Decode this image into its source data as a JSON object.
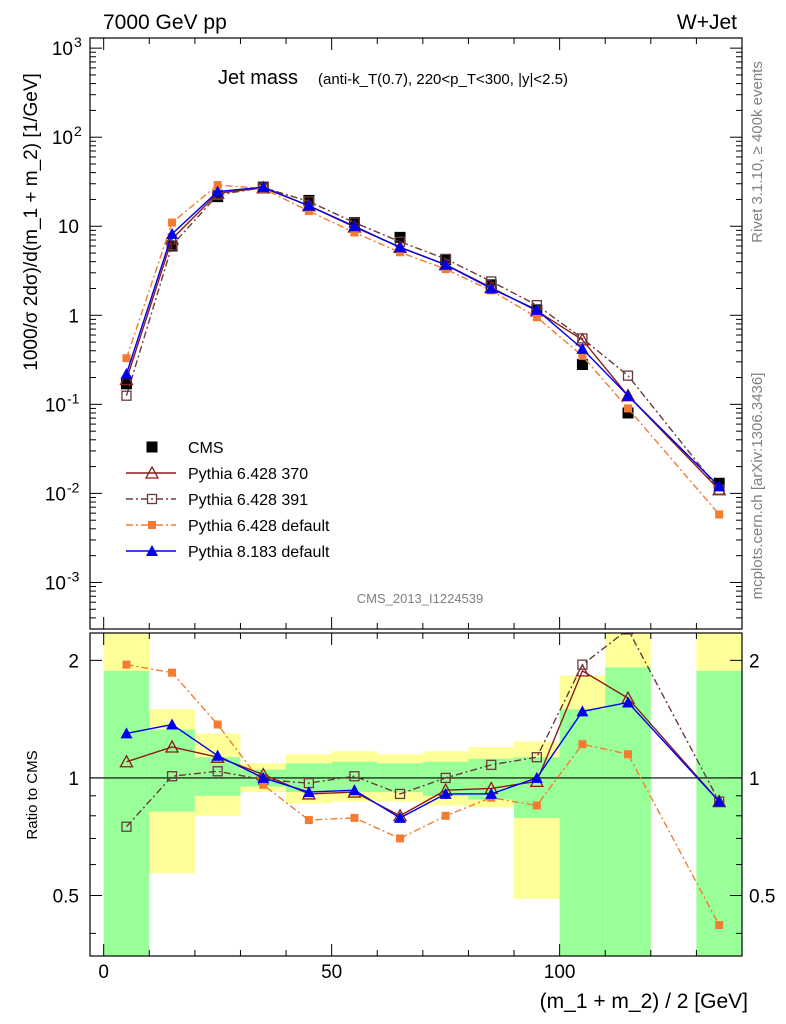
{
  "header": {
    "left": "7000 GeV pp",
    "right": "W+Jet"
  },
  "title": {
    "main": "Jet mass",
    "sub": "(anti-k_T(0.7), 220<p_T<300, |y|<2.5)"
  },
  "watermarks": {
    "rivet": "Rivet 3.1.10, ≥ 400k events",
    "mcplots": "mcplots.cern.ch [arXiv:1306.3436]",
    "analysis": "CMS_2013_I1224539"
  },
  "colors": {
    "cms": "#000000",
    "p370": "#8b1a1a",
    "p391": "#6b3a3a",
    "pdefault6": "#f47c30",
    "p8": "#0000ee",
    "band_yellow": "#ffff99",
    "band_green": "#99ff99"
  },
  "chart_data": [
    {
      "type": "line",
      "panel": "main",
      "ylabel": "1000/σ 2dσ)/d(m_1 + m_2) [1/GeV]",
      "yscale": "log",
      "ylim": [
        0.0003,
        1300
      ],
      "yticks": [
        "10^-3",
        "10^-2",
        "10^-1",
        "1",
        "10",
        "10^2",
        "10^3"
      ],
      "x": [
        5,
        15,
        25,
        35,
        45,
        55,
        65,
        75,
        85,
        95,
        105,
        115,
        135
      ],
      "series": [
        {
          "name": "CMS",
          "marker": "square-filled",
          "values": [
            0.17,
            6.0,
            21.5,
            27.5,
            19.5,
            11.0,
            7.5,
            4.2,
            2.2,
            1.15,
            0.28,
            0.08,
            0.013
          ]
        },
        {
          "name": "Pythia 6.428 370",
          "marker": "triangle-open",
          "values": [
            0.19,
            7.2,
            23.5,
            27.0,
            17.0,
            9.8,
            5.8,
            3.7,
            2.05,
            1.12,
            0.53,
            0.125,
            0.011
          ]
        },
        {
          "name": "Pythia 6.428 391",
          "marker": "square-open",
          "values": [
            0.125,
            6.1,
            22.5,
            27.2,
            19.0,
            11.0,
            6.7,
            4.3,
            2.4,
            1.3,
            0.55,
            0.21,
            0.011
          ]
        },
        {
          "name": "Pythia 6.428 default",
          "marker": "square-filled-small",
          "values": [
            0.33,
            11.0,
            29.0,
            26.5,
            14.8,
            8.5,
            5.1,
            3.3,
            1.9,
            0.95,
            0.35,
            0.09,
            0.0058
          ]
        },
        {
          "name": "Pythia 8.183 default",
          "marker": "triangle-filled",
          "values": [
            0.22,
            8.2,
            24.5,
            27.5,
            17.0,
            10.0,
            5.8,
            3.7,
            2.0,
            1.15,
            0.42,
            0.125,
            0.012
          ]
        }
      ]
    },
    {
      "type": "line",
      "panel": "ratio",
      "ylabel": "Ratio to CMS",
      "yscale": "log",
      "ylim": [
        0.35,
        2.35
      ],
      "yticks": [
        "0.5",
        "1",
        "2"
      ],
      "xlabel": "(m_1 + m_2) / 2 [GeV]",
      "xlim": [
        -3,
        140
      ],
      "xticks": [
        0,
        50,
        100
      ],
      "bands": {
        "x_edges": [
          [
            0,
            10
          ],
          [
            10,
            20
          ],
          [
            20,
            30
          ],
          [
            30,
            40
          ],
          [
            40,
            50
          ],
          [
            50,
            60
          ],
          [
            60,
            70
          ],
          [
            70,
            80
          ],
          [
            80,
            90
          ],
          [
            90,
            100
          ],
          [
            100,
            110
          ],
          [
            110,
            120
          ],
          [
            130,
            140
          ]
        ],
        "yellow": [
          [
            0.35,
            2.35
          ],
          [
            0.57,
            1.5
          ],
          [
            0.8,
            1.3
          ],
          [
            0.92,
            1.09
          ],
          [
            0.86,
            1.15
          ],
          [
            0.87,
            1.17
          ],
          [
            0.87,
            1.15
          ],
          [
            0.85,
            1.17
          ],
          [
            0.84,
            1.2
          ],
          [
            0.49,
            1.24
          ],
          [
            0.35,
            1.83
          ],
          [
            0.35,
            2.35
          ],
          [
            0.35,
            2.35
          ]
        ],
        "green": [
          [
            0.35,
            1.88
          ],
          [
            0.82,
            1.33
          ],
          [
            0.9,
            1.13
          ],
          [
            0.95,
            1.05
          ],
          [
            0.92,
            1.09
          ],
          [
            0.92,
            1.1
          ],
          [
            0.92,
            1.09
          ],
          [
            0.9,
            1.1
          ],
          [
            0.88,
            1.12
          ],
          [
            0.79,
            1.13
          ],
          [
            0.35,
            1.5
          ],
          [
            0.35,
            1.92
          ],
          [
            0.35,
            1.88
          ]
        ]
      },
      "series": [
        {
          "name": "Pythia 6.428 370",
          "values": [
            1.1,
            1.2,
            1.13,
            1.02,
            0.91,
            0.92,
            0.8,
            0.93,
            0.94,
            0.98,
            1.88,
            1.6,
            0.87
          ]
        },
        {
          "name": "Pythia 6.428 391",
          "values": [
            0.75,
            1.01,
            1.04,
            0.99,
            0.97,
            1.01,
            0.91,
            1.0,
            1.08,
            1.13,
            1.95,
            2.4,
            0.87
          ]
        },
        {
          "name": "Pythia 6.428 default",
          "values": [
            1.95,
            1.86,
            1.37,
            0.96,
            0.78,
            0.79,
            0.7,
            0.8,
            0.89,
            0.85,
            1.22,
            1.15,
            0.42
          ]
        },
        {
          "name": "Pythia 8.183 default",
          "values": [
            1.3,
            1.37,
            1.14,
            1.0,
            0.92,
            0.93,
            0.79,
            0.91,
            0.91,
            1.0,
            1.48,
            1.56,
            0.87
          ]
        }
      ]
    }
  ]
}
